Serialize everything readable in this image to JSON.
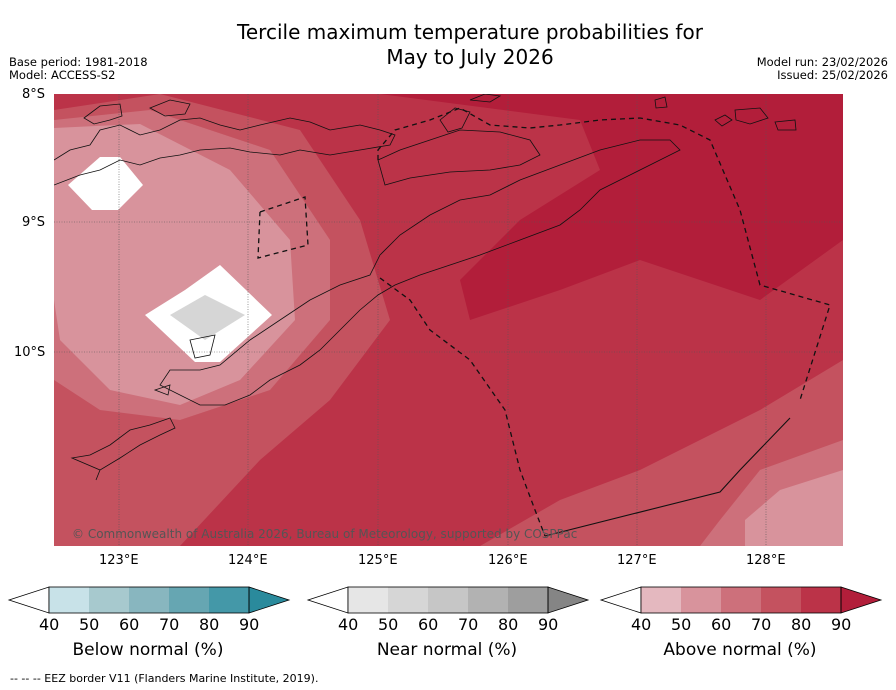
{
  "title": {
    "line1": "Tercile maximum temperature probabilities for",
    "line2": "May to July 2026"
  },
  "meta": {
    "base_period": "Base period: 1981-2018",
    "model": "Model: ACCESS-S2",
    "model_run": "Model run: 23/02/2026",
    "issued": "Issued: 25/02/2026"
  },
  "map": {
    "lat_labels": [
      "8°S",
      "9°S",
      "10°S"
    ],
    "lon_labels": [
      "123°E",
      "124°E",
      "125°E",
      "126°E",
      "127°E",
      "128°E"
    ],
    "copyright": "© Commonwealth of Australia 2026, Bureau of Meteorology, supported by COSPPac"
  },
  "colorbars": {
    "ticks": [
      "40",
      "50",
      "60",
      "70",
      "80",
      "90"
    ],
    "below": {
      "label": "Below normal (%)",
      "colors": [
        "#ffffff",
        "#c8e2e8",
        "#a7c9ce",
        "#88b6bf",
        "#66a6b2",
        "#4498a8",
        "#2a8a9c"
      ]
    },
    "near": {
      "label": "Near normal (%)",
      "colors": [
        "#ffffff",
        "#e6e6e6",
        "#d6d6d6",
        "#c6c6c6",
        "#b2b2b2",
        "#9e9e9e",
        "#858585"
      ]
    },
    "above": {
      "label": "Above normal (%)",
      "colors": [
        "#ffffff",
        "#e4b8bf",
        "#d8939c",
        "#cd707b",
        "#c4525f",
        "#bb3348",
        "#b21e3a"
      ]
    }
  },
  "footer": "-- -- -- EEZ border V11 (Flanders Marine Institute, 2019)."
}
